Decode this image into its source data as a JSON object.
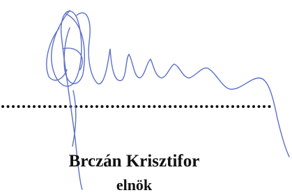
{
  "signature": {
    "name": "Brczán Krisztifor",
    "title": "elnök"
  }
}
